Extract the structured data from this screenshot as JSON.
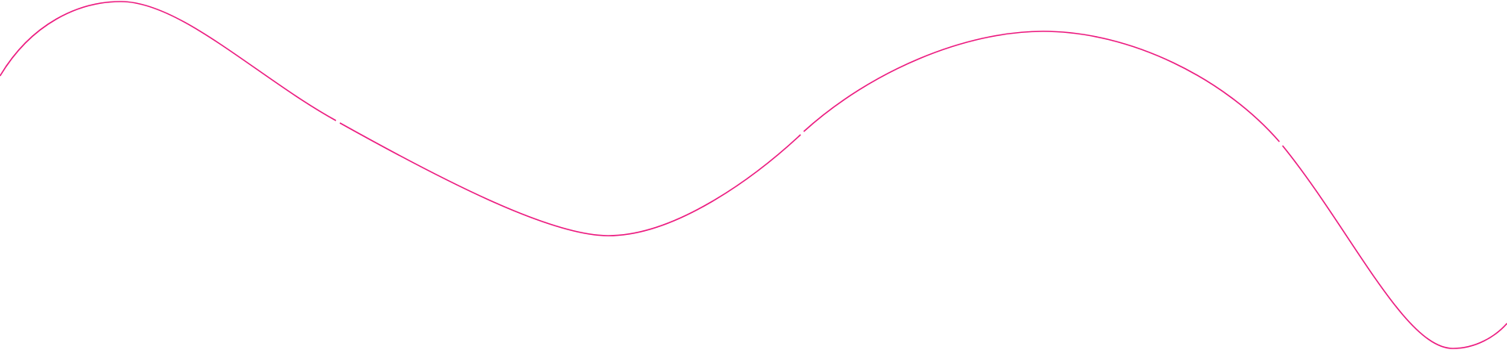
{
  "decoration": {
    "line_color": "#ec1a7f"
  }
}
